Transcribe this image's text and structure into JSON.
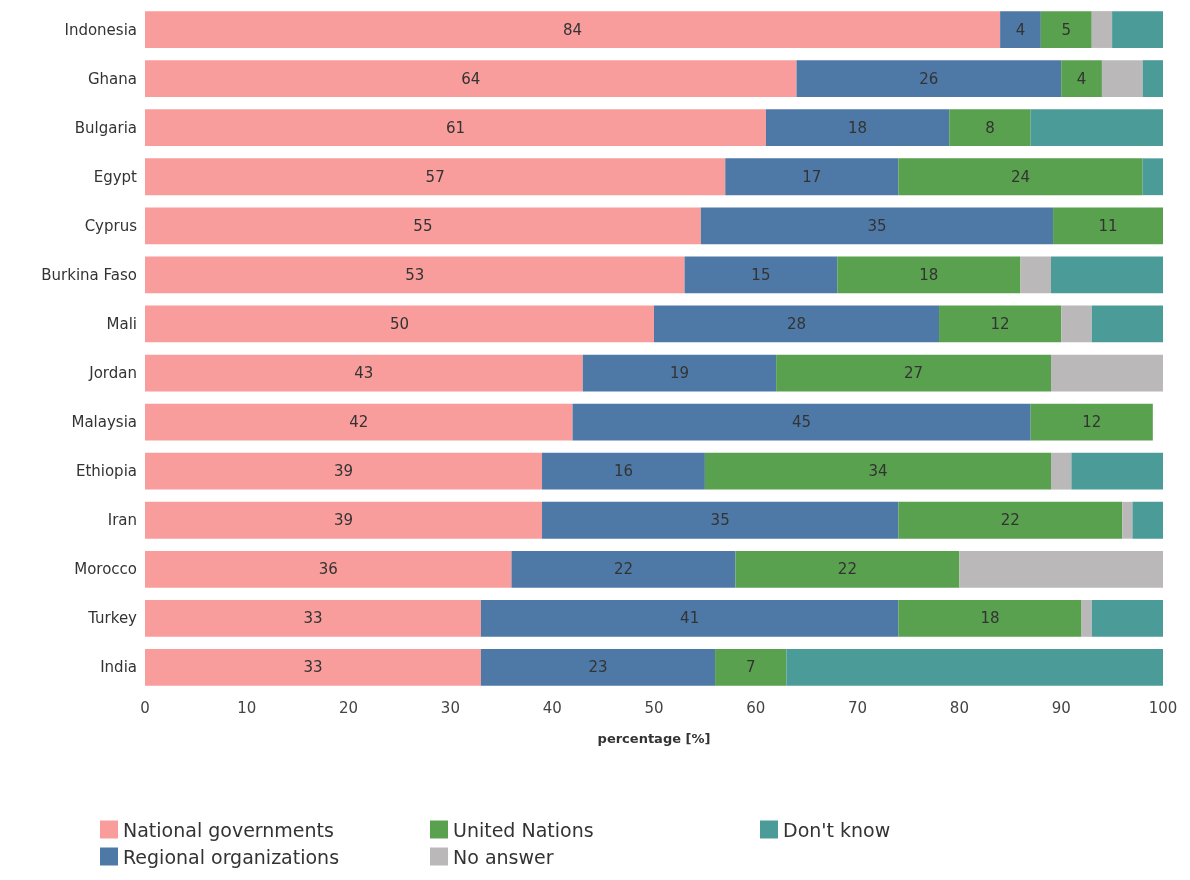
{
  "chart_data": {
    "type": "bar",
    "orientation": "horizontal",
    "stacked": true,
    "xlabel": "percentage [%]",
    "categories": [
      "Indonesia",
      "Ghana",
      "Bulgaria",
      "Egypt",
      "Cyprus",
      "Burkina Faso",
      "Mali",
      "Jordan",
      "Malaysia",
      "Ethiopia",
      "Iran",
      "Morocco",
      "Turkey",
      "India"
    ],
    "series": [
      {
        "name": "National governments",
        "color": "#f89c9c",
        "values": [
          84,
          64,
          61,
          57,
          54.6,
          53,
          50,
          43,
          42,
          39,
          39,
          36,
          33,
          33
        ],
        "value_labels": [
          "84",
          "64",
          "61",
          "57",
          "55",
          "53",
          "50",
          "43",
          "42",
          "39",
          "39",
          "36",
          "33",
          "33"
        ]
      },
      {
        "name": "Regional organizations",
        "color": "#4e79a7",
        "values": [
          4,
          26,
          18,
          17,
          34.6,
          15,
          28,
          19,
          45,
          16,
          35,
          22,
          41,
          23
        ],
        "value_labels": [
          "4",
          "26",
          "18",
          "17",
          "35",
          "15",
          "28",
          "19",
          "45",
          "16",
          "35",
          "22",
          "41",
          "23"
        ]
      },
      {
        "name": "United Nations",
        "color": "#59a14f",
        "values": [
          5,
          4,
          8,
          24,
          10.8,
          18,
          12,
          27,
          12,
          34,
          22,
          22,
          18,
          7
        ],
        "value_labels": [
          "5",
          "4",
          "8",
          "24",
          "11",
          "18",
          "12",
          "27",
          "12",
          "34",
          "22",
          "22",
          "18",
          "7"
        ]
      },
      {
        "name": "No answer",
        "color": "#bab8b8",
        "values": [
          2,
          4,
          null,
          null,
          null,
          3,
          3,
          11,
          null,
          2,
          1,
          20,
          1,
          null
        ]
      },
      {
        "name": "Don't know",
        "color": "#4b9b98",
        "values": [
          5,
          2,
          13,
          2,
          null,
          11,
          7,
          null,
          null,
          9,
          3,
          null,
          7,
          37
        ]
      }
    ],
    "xlim": [
      0,
      100
    ],
    "xticks": [
      0,
      10,
      20,
      30,
      40,
      50,
      60,
      70,
      80,
      90,
      100
    ],
    "grid": false,
    "legend": "bottom left"
  }
}
